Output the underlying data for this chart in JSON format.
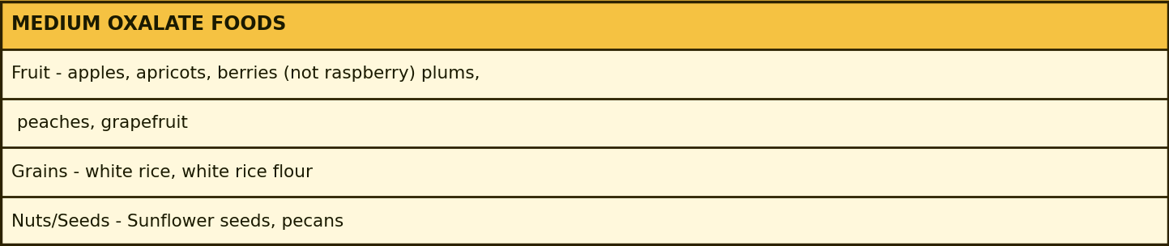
{
  "title": "MEDIUM OXALATE FOODS",
  "header_bg_color": "#F5C242",
  "body_bg_color": "#FFF8DC",
  "border_color": "#2C2200",
  "title_color": "#1A1A00",
  "text_color": "#1A1A00",
  "title_fontsize": 17,
  "body_fontsize": 15.5,
  "rows": [
    "Fruit - apples, apricots, berries (not raspberry) plums,",
    " peaches, grapefruit",
    "Grains - white rice, white rice flour",
    "Nuts/Seeds - Sunflower seeds, pecans"
  ],
  "figwidth": 14.43,
  "figheight": 3.04,
  "dpi": 100
}
